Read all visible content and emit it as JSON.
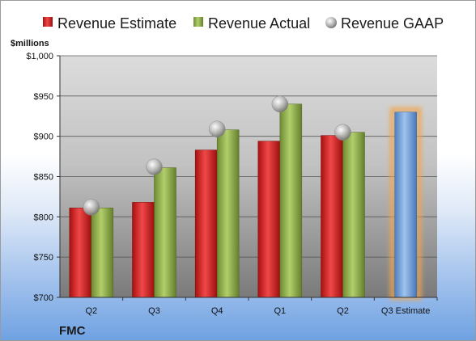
{
  "chart_data": {
    "type": "bar",
    "title": "",
    "ylabel": "$millions",
    "xlabel": "",
    "company": "FMC",
    "categories": [
      "Q2",
      "Q3",
      "Q4",
      "Q1",
      "Q2",
      "Q3 Estimate"
    ],
    "ylim": [
      700,
      1000
    ],
    "yticks": [
      700,
      750,
      800,
      850,
      900,
      950,
      1000
    ],
    "ytick_labels": [
      "$700",
      "$750",
      "$800",
      "$850",
      "$900",
      "$950",
      "$1,000"
    ],
    "grid": true,
    "legend_position": "top",
    "series": [
      {
        "name": "Revenue Estimate",
        "kind": "bar",
        "color": "#d42a2a",
        "values": [
          811,
          818,
          883,
          894,
          901,
          930
        ]
      },
      {
        "name": "Revenue Actual",
        "kind": "bar",
        "color": "#8fb04b",
        "values": [
          811,
          861,
          908,
          940,
          905,
          null
        ]
      },
      {
        "name": "Revenue GAAP",
        "kind": "marker",
        "color": "#b4b4b4",
        "values": [
          812,
          862,
          909,
          940,
          905,
          null
        ]
      }
    ],
    "estimate_color": "#6f9fd8"
  }
}
